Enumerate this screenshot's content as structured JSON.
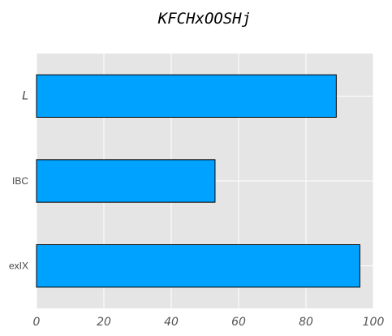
{
  "chart_data": {
    "type": "bar",
    "orientation": "horizontal",
    "title": "KFCHxOOSHj",
    "xlabel": "",
    "ylabel": "",
    "categories": [
      "exIX",
      "IBC",
      "L"
    ],
    "values": [
      96,
      53,
      89
    ],
    "xlim": [
      0,
      100
    ],
    "xticks": [
      0,
      20,
      40,
      60,
      80,
      100
    ],
    "grid": true,
    "colors": {
      "bar": "#00a2ff",
      "bar_edge": "#000000",
      "plot_bg": "#e5e5e5",
      "grid": "#ffffff"
    }
  }
}
